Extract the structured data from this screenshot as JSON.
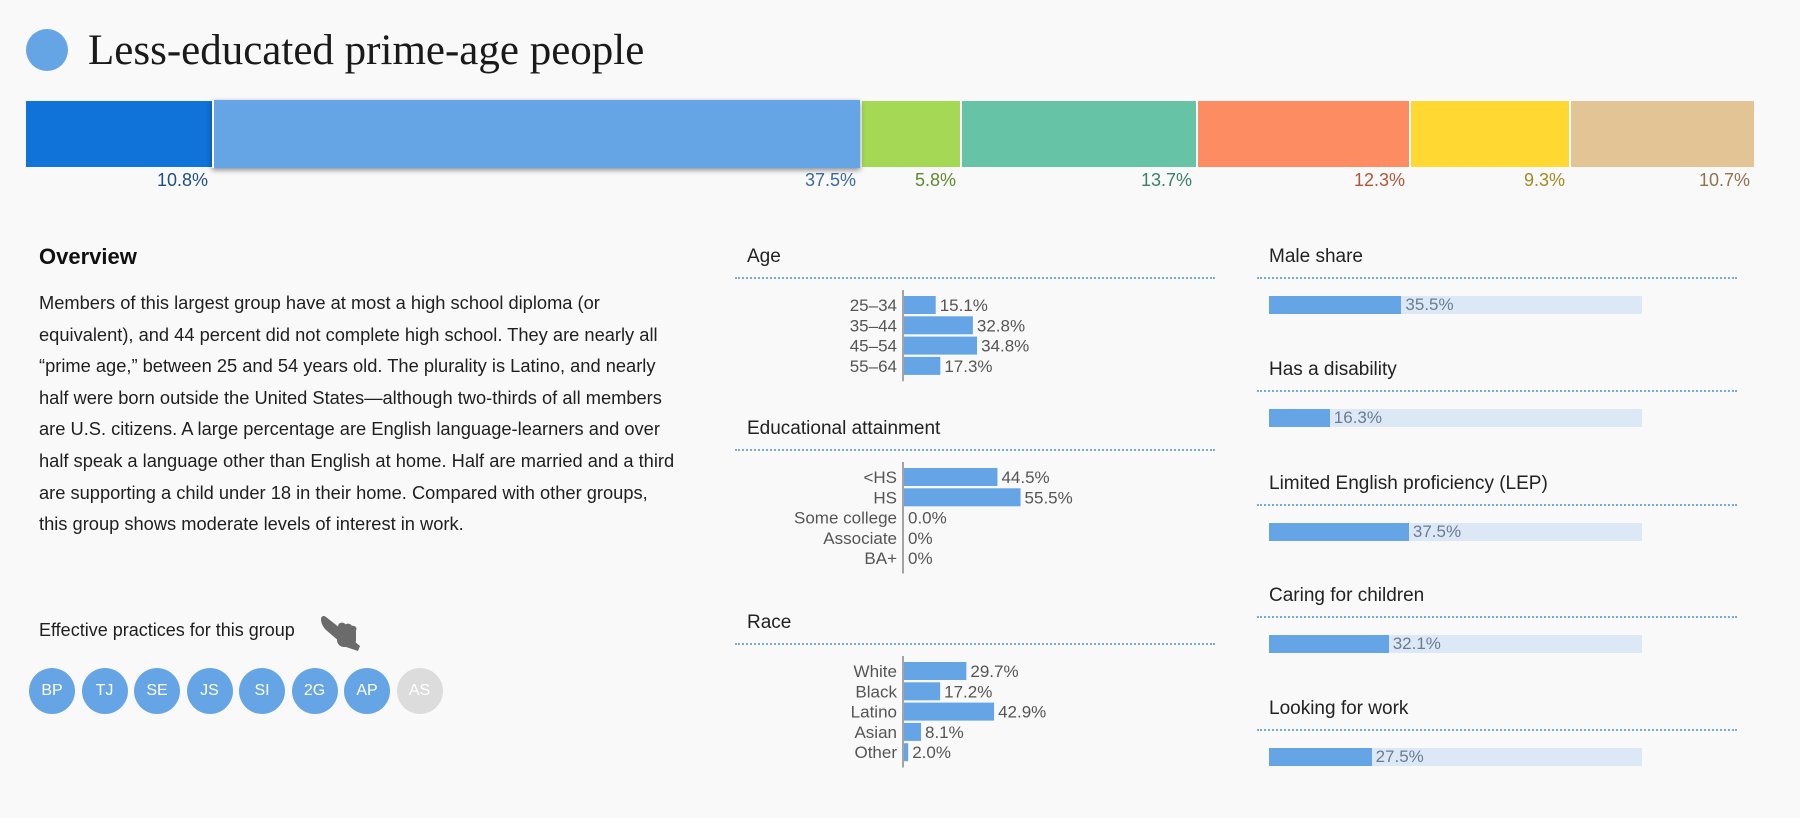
{
  "page": {
    "title": "Less-educated prime-age people",
    "title_dot_color": "#66a5e5"
  },
  "chart_data": [
    {
      "type": "bar",
      "subtype": "stacked-horizontal-100",
      "name": "group-shares",
      "segments": [
        {
          "value": 10.8,
          "label": "10.8%",
          "color": "#0f73d9",
          "label_color": "#1f4f87"
        },
        {
          "value": 37.5,
          "label": "37.5%",
          "color": "#66a5e5",
          "label_color": "#3d6a9f",
          "highlighted": true
        },
        {
          "value": 5.8,
          "label": "5.8%",
          "color": "#a5d955",
          "label_color": "#5f8a2e"
        },
        {
          "value": 13.7,
          "label": "13.7%",
          "color": "#66c3a6",
          "label_color": "#3b8069"
        },
        {
          "value": 12.3,
          "label": "12.3%",
          "color": "#fe8c63",
          "label_color": "#b45538"
        },
        {
          "value": 9.3,
          "label": "9.3%",
          "color": "#ffd932",
          "label_color": "#a48a20"
        },
        {
          "value": 10.7,
          "label": "10.7%",
          "color": "#e3c494",
          "label_color": "#8d7550"
        }
      ]
    },
    {
      "type": "bar",
      "orientation": "horizontal",
      "name": "age",
      "title": "Age",
      "categories": [
        "25–34",
        "35–44",
        "45–54",
        "55–64"
      ],
      "values": [
        15.1,
        32.8,
        34.8,
        17.3
      ],
      "labels": [
        "15.1%",
        "32.8%",
        "34.8%",
        "17.3%"
      ]
    },
    {
      "type": "bar",
      "orientation": "horizontal",
      "name": "education",
      "title": "Educational attainment",
      "categories": [
        "<HS",
        "HS",
        "Some college",
        "Associate",
        "BA+"
      ],
      "values": [
        44.5,
        55.5,
        0.0,
        0,
        0
      ],
      "labels": [
        "44.5%",
        "55.5%",
        "0.0%",
        "0%",
        "0%"
      ]
    },
    {
      "type": "bar",
      "orientation": "horizontal",
      "name": "race",
      "title": "Race",
      "categories": [
        "White",
        "Black",
        "Latino",
        "Asian",
        "Other"
      ],
      "values": [
        29.7,
        17.2,
        42.9,
        8.1,
        2.0
      ],
      "labels": [
        "29.7%",
        "17.2%",
        "42.9%",
        "8.1%",
        "2.0%"
      ]
    },
    {
      "type": "bar",
      "orientation": "horizontal",
      "name": "characteristics",
      "categories": [
        "Male share",
        "Has a disability",
        "Limited English proficiency (LEP)",
        "Caring for children",
        "Looking for work"
      ],
      "values": [
        35.5,
        16.3,
        37.5,
        32.1,
        27.5
      ],
      "labels": [
        "35.5%",
        "16.3%",
        "37.5%",
        "32.1%",
        "27.5%"
      ],
      "xlim": [
        0,
        100
      ]
    }
  ],
  "overview": {
    "heading": "Overview",
    "body": "Members of this largest group have at most a high school diploma (or equivalent), and 44 percent did not complete high school. They are nearly all “prime age,” between 25 and 54 years old. The plurality is Latino, and nearly half were born outside the United States—although two-thirds of all members are U.S. citizens. A large percentage are English language-learners and over half speak a language other than English at home. Half are married and a third are supporting a child under 18 in their home. Compared with other groups, this group shows moderate levels of interest in work."
  },
  "practices": {
    "label": "Effective practices for this group",
    "icon": "pointing-hand-icon",
    "badges": [
      {
        "label": "BP",
        "active": true
      },
      {
        "label": "TJ",
        "active": true
      },
      {
        "label": "SE",
        "active": true
      },
      {
        "label": "JS",
        "active": true
      },
      {
        "label": "SI",
        "active": true
      },
      {
        "label": "2G",
        "active": true
      },
      {
        "label": "AP",
        "active": true
      },
      {
        "label": "AS",
        "active": false
      }
    ],
    "active_color": "#66a5e5",
    "inactive_color": "#dcdcdc"
  },
  "colors": {
    "bar": "#66a5e5",
    "track": "#dce8f6",
    "rule": "#7aa9db",
    "value_text": "#6a7c92",
    "category_text": "#555555"
  }
}
